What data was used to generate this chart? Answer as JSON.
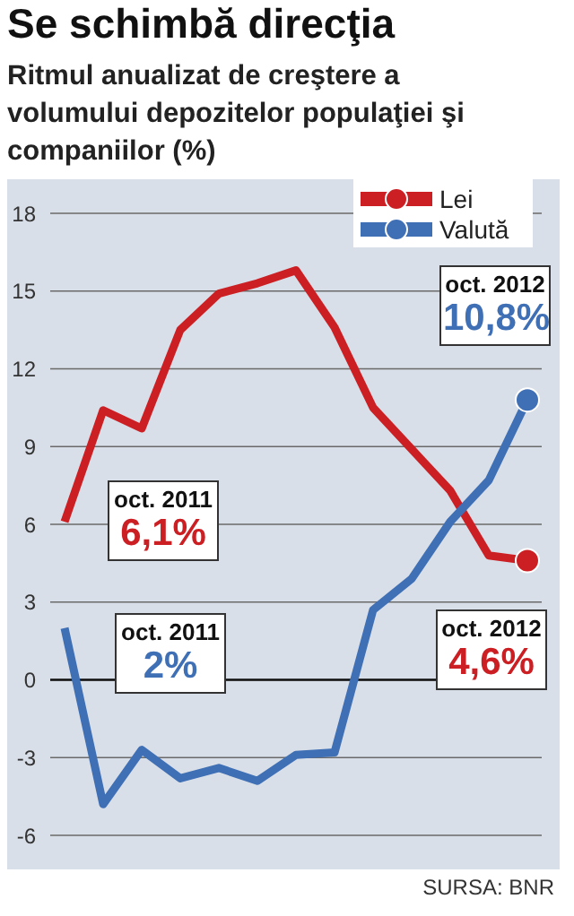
{
  "chart_data": {
    "type": "line",
    "title": "Se schimbă direcţia",
    "subtitle": "Ritmul anualizat de creştere a volumului depozitelor populaţiei şi companiilor (%)",
    "categories": [
      null,
      null,
      null,
      null,
      null,
      null,
      null,
      null,
      null,
      null,
      null,
      null,
      null
    ],
    "series": [
      {
        "name": "Lei",
        "color": "#cc1f24",
        "values": [
          6.1,
          10.4,
          9.7,
          13.5,
          14.9,
          15.3,
          15.8,
          13.6,
          10.5,
          8.9,
          7.3,
          4.8,
          4.6
        ]
      },
      {
        "name": "Valută",
        "color": "#3f6fb5",
        "values": [
          2,
          -4.8,
          -2.7,
          -3.8,
          -3.4,
          -3.9,
          -2.9,
          -2.8,
          2.7,
          3.9,
          6.1,
          7.7,
          10.8
        ]
      }
    ],
    "ylim": [
      -6,
      18
    ],
    "yticks": [
      -6,
      -3,
      0,
      3,
      6,
      9,
      12,
      15,
      18
    ],
    "grid": "y",
    "legend": "top right",
    "tick_labels": "y",
    "annotations": [
      "oct. 2011\n6,1%",
      "oct. 2011\n2%",
      "oct. 2012\n10,8%",
      "oct. 2012\n4,6%",
      "SURSA: BNR"
    ]
  }
}
